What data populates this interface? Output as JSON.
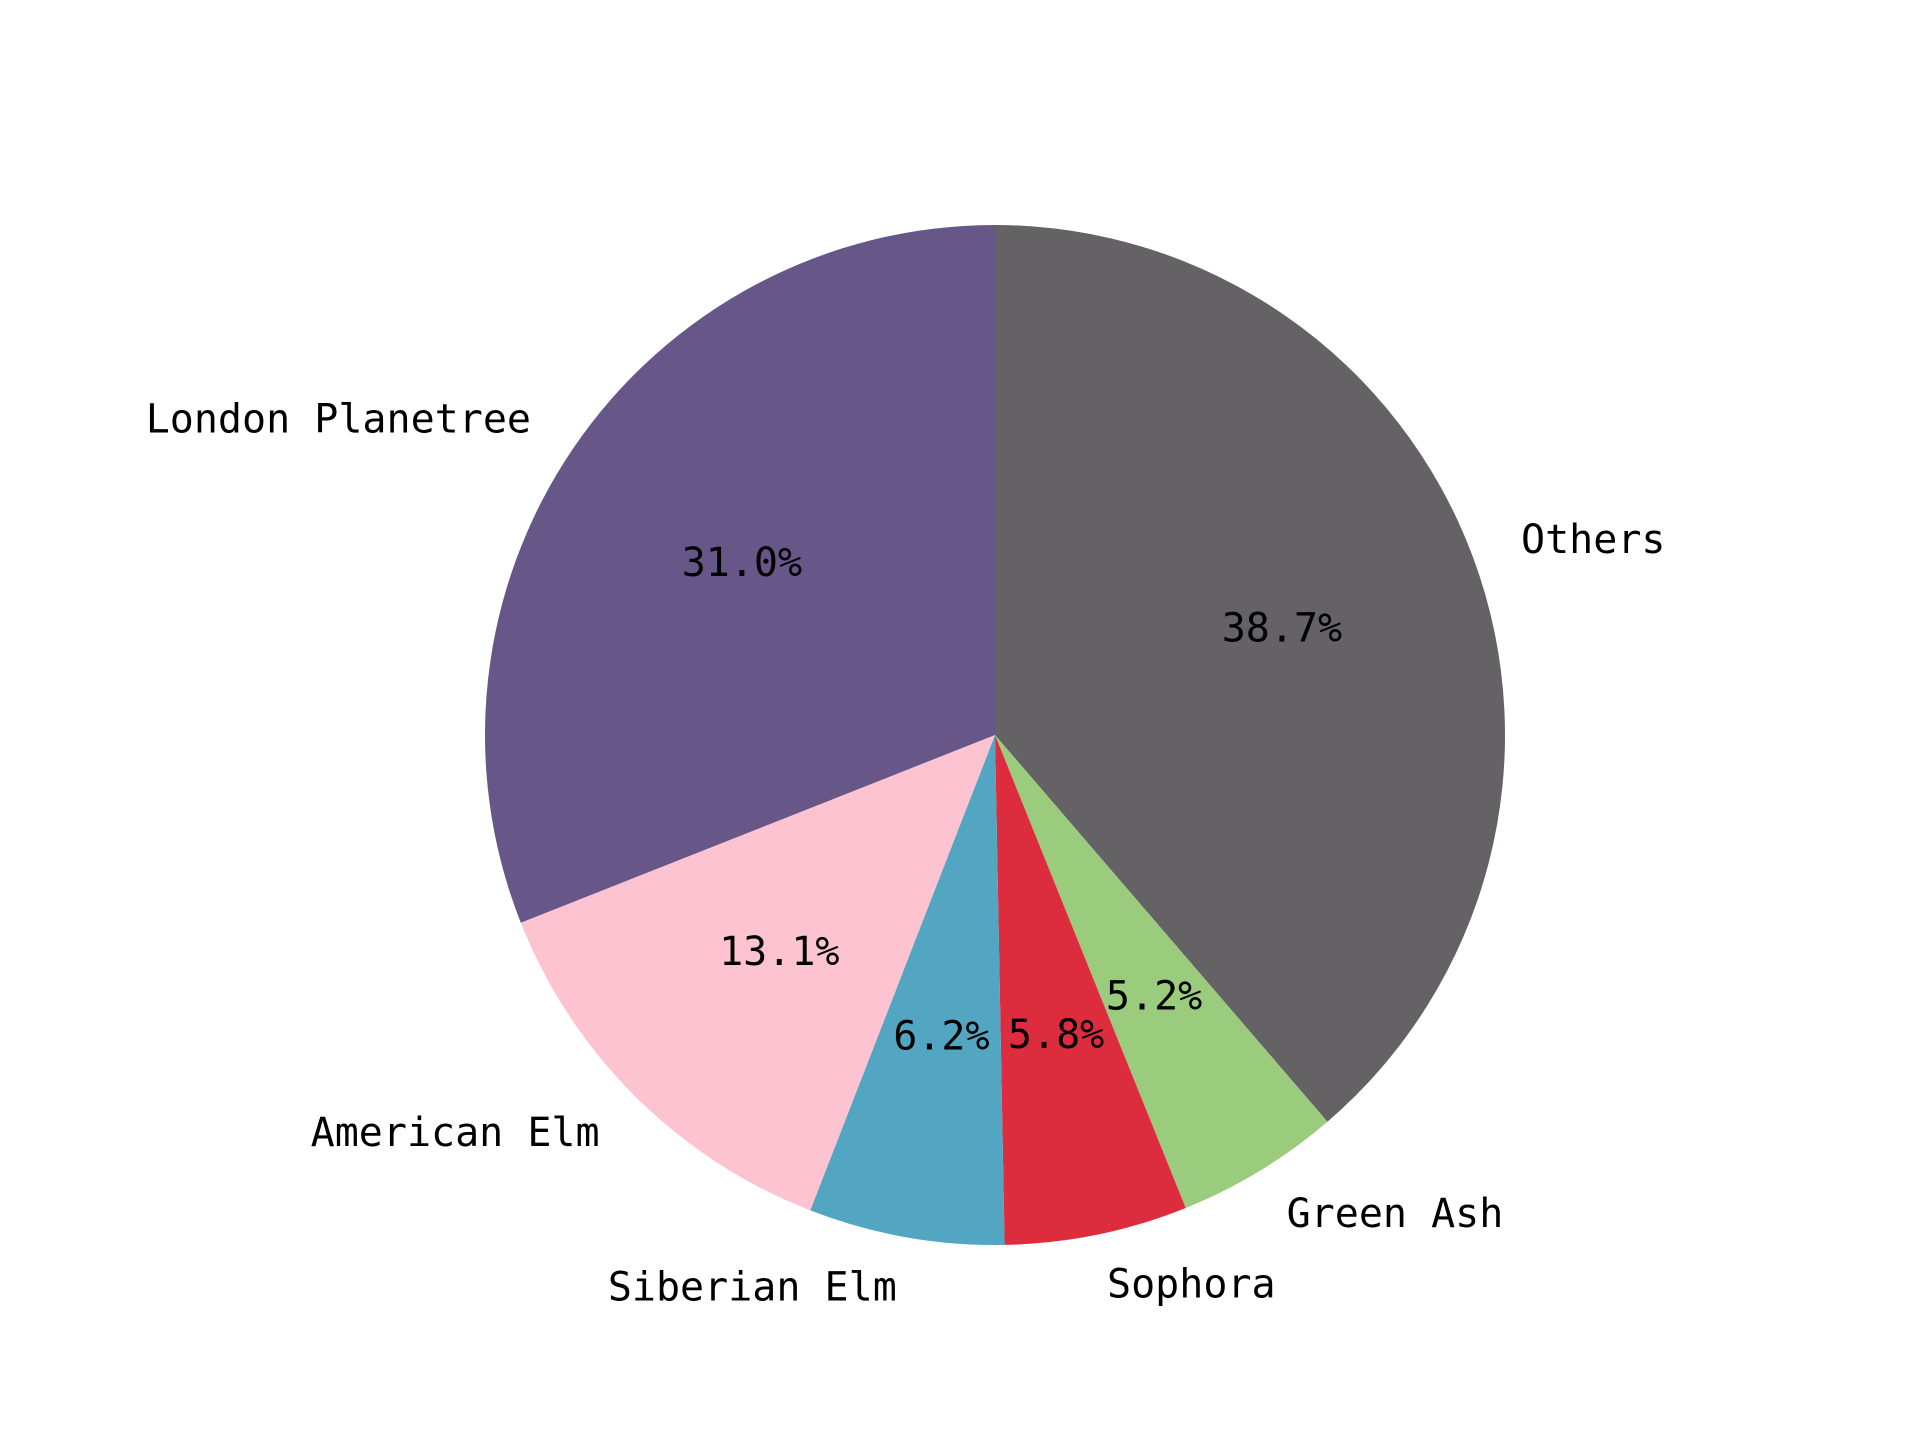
{
  "chart_data": {
    "type": "pie",
    "title": "",
    "start_angle_deg": 90,
    "direction": "clockwise",
    "legend": "none",
    "slices": [
      {
        "label": "Others",
        "value": 38.7,
        "pct_label": "38.7%",
        "color": "#646265"
      },
      {
        "label": "Green Ash",
        "value": 5.2,
        "pct_label": "5.2%",
        "color": "#9bcb7c"
      },
      {
        "label": "Sophora",
        "value": 5.8,
        "pct_label": "5.8%",
        "color": "#dd2c3e"
      },
      {
        "label": "Siberian Elm",
        "value": 6.2,
        "pct_label": "6.2%",
        "color": "#52a6c2"
      },
      {
        "label": "American Elm",
        "value": 13.1,
        "pct_label": "13.1%",
        "color": "#fdc3d1"
      },
      {
        "label": "London Planetree",
        "value": 31.0,
        "pct_label": "31.0%",
        "color": "#675788"
      }
    ]
  }
}
